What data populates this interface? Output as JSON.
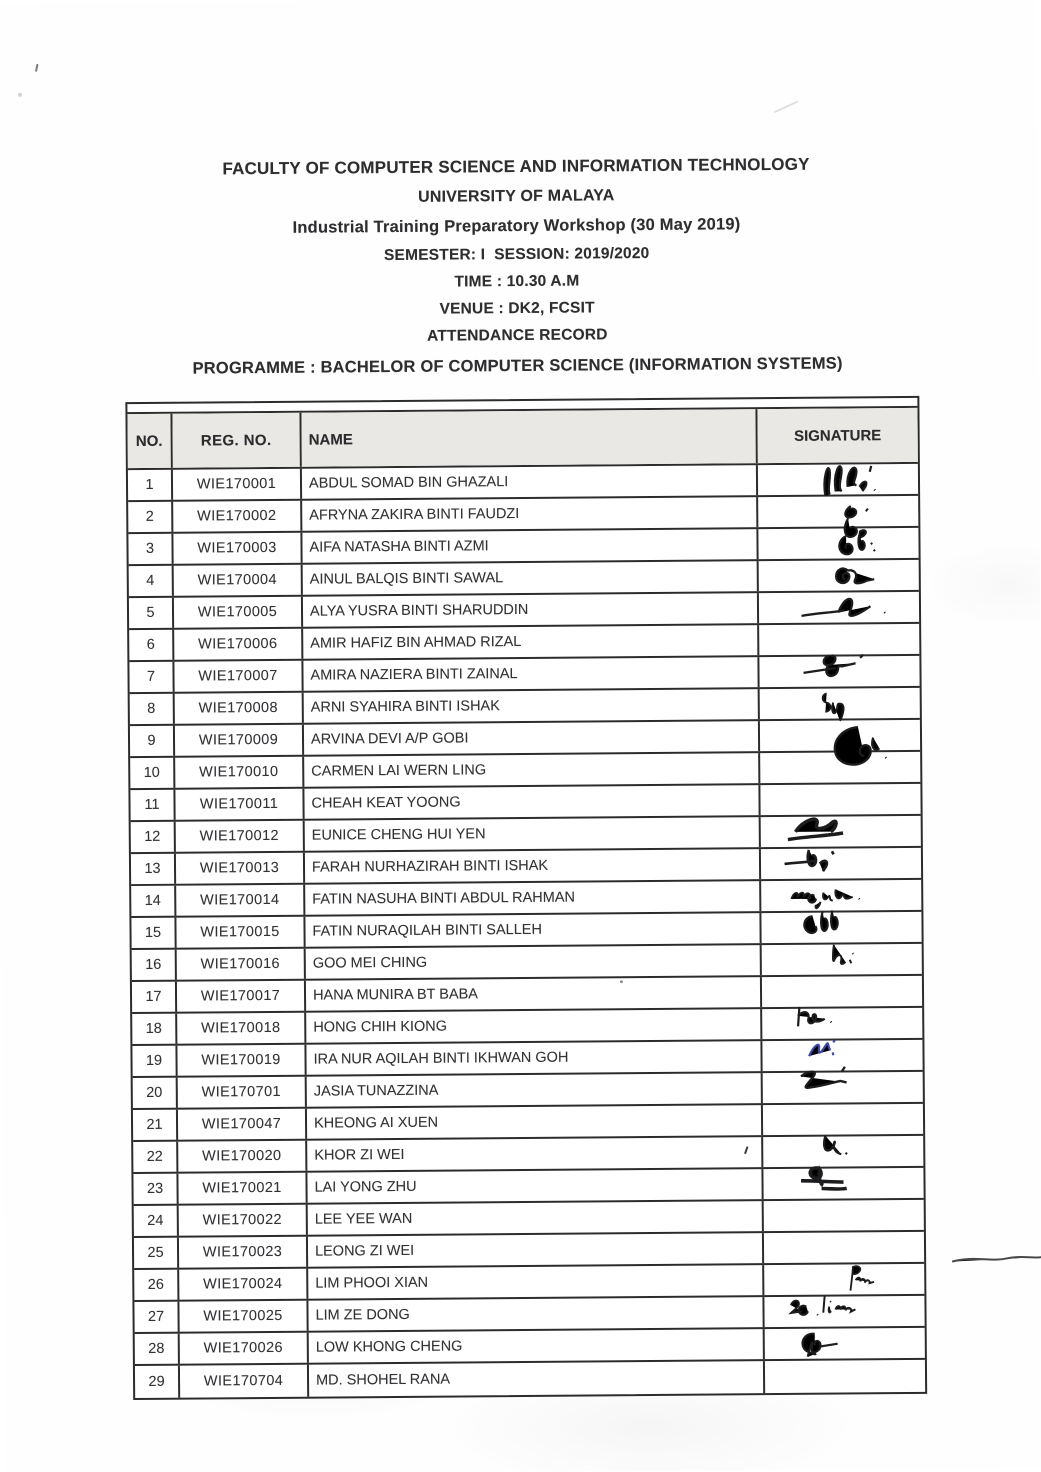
{
  "document": {
    "header_lines": [
      "FACULTY OF COMPUTER SCIENCE AND INFORMATION TECHNOLOGY",
      "UNIVERSITY OF MALAYA",
      "Industrial Training Preparatory Workshop (30 May 2019)",
      "SEMESTER: I  SESSION: 2019/2020",
      "TIME : 10.30 A.M",
      "VENUE : DK2, FCSIT",
      "ATTENDANCE RECORD",
      "PROGRAMME : BACHELOR OF COMPUTER SCIENCE (INFORMATION SYSTEMS)"
    ]
  },
  "table": {
    "columns": [
      "NO.",
      "REG. NO.",
      "NAME",
      "SIGNATURE"
    ],
    "rows": [
      {
        "no": "1",
        "reg": "WIE170001",
        "name": "ABDUL SOMAD BIN GHAZALI",
        "signature": "a"
      },
      {
        "no": "2",
        "reg": "WIE170002",
        "name": "AFRYNA ZAKIRA BINTI FAUDZI",
        "signature": "b"
      },
      {
        "no": "3",
        "reg": "WIE170003",
        "name": "AIFA NATASHA BINTI AZMI",
        "signature": "c"
      },
      {
        "no": "4",
        "reg": "WIE170004",
        "name": "AINUL BALQIS BINTI SAWAL",
        "signature": "d"
      },
      {
        "no": "5",
        "reg": "WIE170005",
        "name": "ALYA YUSRA BINTI SHARUDDIN",
        "signature": "e"
      },
      {
        "no": "6",
        "reg": "WIE170006",
        "name": "AMIR HAFIZ BIN AHMAD RIZAL",
        "signature": null
      },
      {
        "no": "7",
        "reg": "WIE170007",
        "name": "AMIRA NAZIERA BINTI ZAINAL",
        "signature": "f"
      },
      {
        "no": "8",
        "reg": "WIE170008",
        "name": "ARNI SYAHIRA BINTI ISHAK",
        "signature": "g"
      },
      {
        "no": "9",
        "reg": "WIE170009",
        "name": "ARVINA DEVI A/P GOBI",
        "signature": "h"
      },
      {
        "no": "10",
        "reg": "WIE170010",
        "name": "CARMEN LAI WERN LING",
        "signature": null
      },
      {
        "no": "11",
        "reg": "WIE170011",
        "name": "CHEAH KEAT YOONG",
        "signature": null
      },
      {
        "no": "12",
        "reg": "WIE170012",
        "name": "EUNICE CHENG HUI YEN",
        "signature": "i"
      },
      {
        "no": "13",
        "reg": "WIE170013",
        "name": "FARAH NURHAZIRAH BINTI ISHAK",
        "signature": "j"
      },
      {
        "no": "14",
        "reg": "WIE170014",
        "name": "FATIN NASUHA BINTI ABDUL RAHMAN",
        "signature": "k"
      },
      {
        "no": "15",
        "reg": "WIE170015",
        "name": "FATIN NURAQILAH BINTI SALLEH",
        "signature": "l"
      },
      {
        "no": "16",
        "reg": "WIE170016",
        "name": "GOO MEI CHING",
        "signature": "m"
      },
      {
        "no": "17",
        "reg": "WIE170017",
        "name": "HANA MUNIRA BT BABA",
        "signature": null
      },
      {
        "no": "18",
        "reg": "WIE170018",
        "name": "HONG CHIH KIONG",
        "signature": "n"
      },
      {
        "no": "19",
        "reg": "WIE170019",
        "name": "IRA NUR AQILAH BINTI IKHWAN GOH",
        "signature": "o",
        "ink": "#3a49b0"
      },
      {
        "no": "20",
        "reg": "WIE170701",
        "name": "JASIA TUNAZZINA",
        "signature": "p"
      },
      {
        "no": "21",
        "reg": "WIE170047",
        "name": "KHEONG AI XUEN",
        "signature": null
      },
      {
        "no": "22",
        "reg": "WIE170020",
        "name": "KHOR ZI WEI",
        "signature": "q"
      },
      {
        "no": "23",
        "reg": "WIE170021",
        "name": "LAI YONG ZHU",
        "signature": "r"
      },
      {
        "no": "24",
        "reg": "WIE170022",
        "name": "LEE YEE WAN",
        "signature": null
      },
      {
        "no": "25",
        "reg": "WIE170023",
        "name": "LEONG ZI WEI",
        "signature": null
      },
      {
        "no": "26",
        "reg": "WIE170024",
        "name": "LIM PHOOI XIAN",
        "signature": "s"
      },
      {
        "no": "27",
        "reg": "WIE170025",
        "name": "LIM ZE DONG",
        "signature": "t"
      },
      {
        "no": "28",
        "reg": "WIE170026",
        "name": "LOW KHONG CHENG",
        "signature": "u"
      },
      {
        "no": "29",
        "reg": "WIE170704",
        "name": "MD. SHOHEL RANA",
        "signature": null
      }
    ]
  },
  "colors": {
    "ink": "#1d1d1f",
    "blue_ink": "#3a49b0",
    "header_bg": "#eae8e5",
    "border": "#2c2c2c"
  }
}
